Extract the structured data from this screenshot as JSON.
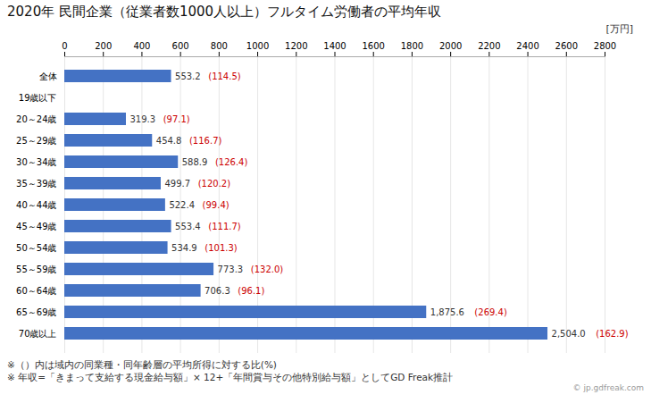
{
  "chart_data": {
    "type": "bar",
    "orientation": "horizontal",
    "title": "2020年 民間企業（従業者数1000人以上）フルタイム労働者の平均年収",
    "unit_label": "[万円]",
    "categories": [
      "全体",
      "19歳以下",
      "20～24歳",
      "25～29歳",
      "30～34歳",
      "35～39歳",
      "40～44歳",
      "45～49歳",
      "50～54歳",
      "55～59歳",
      "60～64歳",
      "65～69歳",
      "70歳以上"
    ],
    "values": [
      553.2,
      0,
      319.3,
      454.8,
      588.9,
      499.7,
      522.4,
      553.4,
      534.9,
      773.3,
      706.3,
      1875.6,
      2504.0
    ],
    "value_labels": [
      "553.2",
      null,
      "319.3",
      "454.8",
      "588.9",
      "499.7",
      "522.4",
      "553.4",
      "534.9",
      "773.3",
      "706.3",
      "1,875.6",
      "2,504.0"
    ],
    "data_labels": true,
    "color": "#4472C4",
    "ratios": {
      "values": [
        114.5,
        null,
        97.1,
        116.7,
        126.4,
        120.2,
        99.4,
        111.7,
        101.3,
        132.0,
        96.1,
        269.4,
        162.9
      ],
      "labels": [
        "(114.5)",
        null,
        "(97.1)",
        "(116.7)",
        "(126.4)",
        "(120.2)",
        "(99.4)",
        "(111.7)",
        "(101.3)",
        "(132.0)",
        "(96.1)",
        "(269.4)",
        "(162.9)"
      ],
      "color": "#CC0000"
    },
    "xlim": [
      0,
      2800
    ],
    "xticks": [
      0,
      200,
      400,
      600,
      800,
      1000,
      1200,
      1400,
      1600,
      1800,
      2000,
      2200,
      2400,
      2600,
      2800
    ],
    "grid": true,
    "footnotes": [
      "※（）内は域内の同業種・同年齢層の平均所得に対する比(%)",
      "※ 年収=「きまって支給する現金給与額」× 12+「年間賞与その他特別給与額」としてGD Freak推計"
    ],
    "watermark": "© jp.gdfreak.com"
  }
}
